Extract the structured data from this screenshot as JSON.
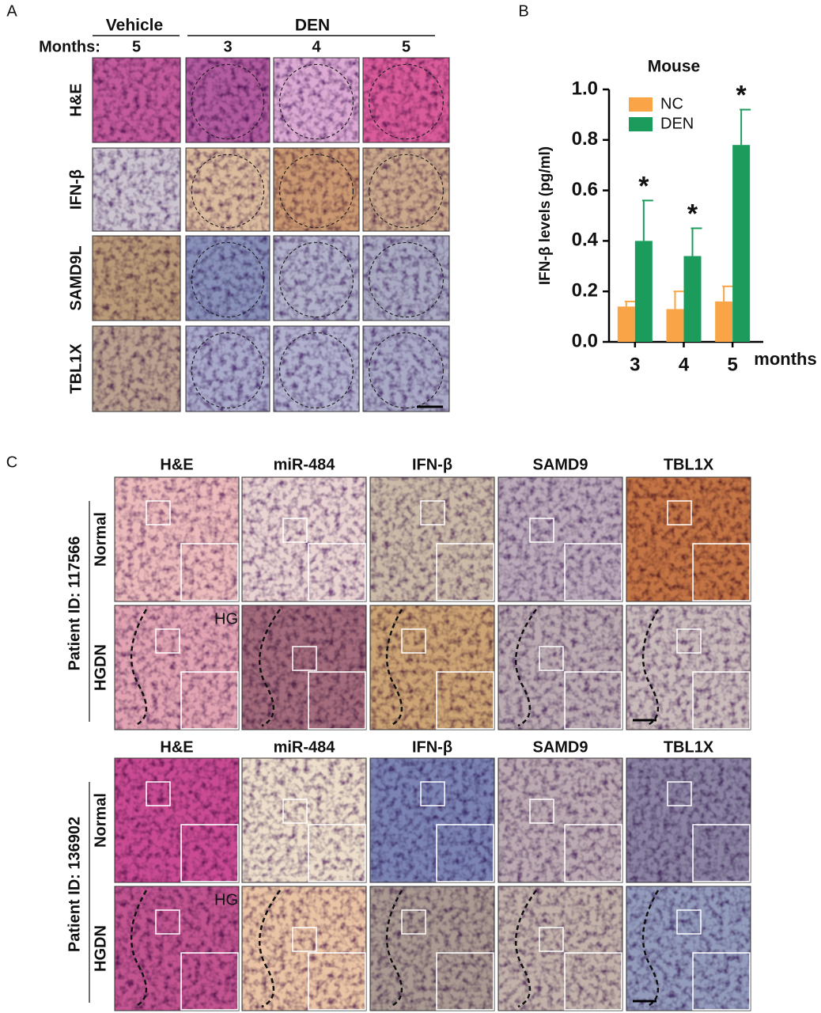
{
  "panel_a": {
    "label": "A",
    "groups": [
      "Vehicle",
      "DEN"
    ],
    "months_label": "Months:",
    "months": [
      "5",
      "3",
      "4",
      "5"
    ],
    "rows": [
      "H&E",
      "IFN-β",
      "SAMD9L",
      "TBL1X"
    ]
  },
  "panel_b": {
    "label": "B"
  },
  "chart_data": {
    "type": "bar",
    "title": "Mouse",
    "y_label": "IFN-β levels (pg/ml)",
    "x_label": "months",
    "categories": [
      "3",
      "4",
      "5"
    ],
    "series": [
      {
        "name": "NC",
        "color": "#f8a447",
        "values": [
          0.14,
          0.13,
          0.16
        ],
        "errors": [
          0.02,
          0.07,
          0.06
        ]
      },
      {
        "name": "DEN",
        "color": "#1b9c5d",
        "values": [
          0.4,
          0.34,
          0.78
        ],
        "errors": [
          0.16,
          0.11,
          0.14
        ],
        "annotations": [
          "*",
          "*",
          "*"
        ]
      }
    ],
    "ylim": [
      0,
      1.0
    ],
    "yticks": [
      {
        "value": 0,
        "label": "0.0"
      },
      0.2,
      0.4,
      0.6,
      0.8,
      {
        "value": 1.0,
        "label": "1.0"
      }
    ],
    "legend": "top-left"
  },
  "panel_c": {
    "label": "C",
    "patients": [
      {
        "id": "Patient ID: 117566",
        "columns": [
          "H&E",
          "miR-484",
          "IFN-β",
          "SAMD9",
          "TBL1X"
        ],
        "rows": [
          "Normal",
          "HGDN"
        ],
        "region_label": "HG"
      },
      {
        "id": "Patient ID: 136902",
        "columns": [
          "H&E",
          "miR-484",
          "IFN-β",
          "SAMD9",
          "TBL1X"
        ],
        "rows": [
          "Normal",
          "HGDN"
        ],
        "region_label": "HG"
      }
    ]
  }
}
